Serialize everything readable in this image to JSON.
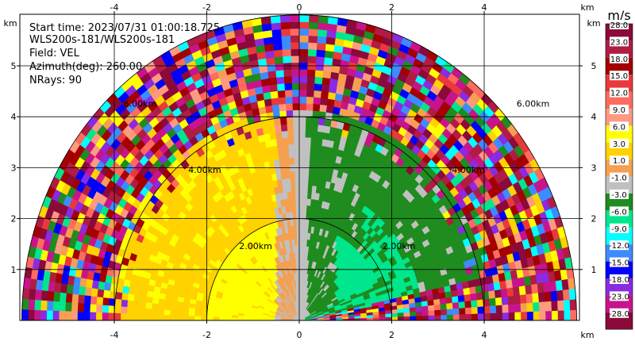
{
  "chart_data": {
    "type": "heatmap",
    "subtype": "radar-rhi-velocity",
    "info_lines": [
      "Start time: 2023/07/31 01:00:18.725",
      "WLS200s-181/WLS200s-181",
      "Field: VEL",
      "Azimuth(deg): 260.00",
      "NRays: 90"
    ],
    "x_unit": "km",
    "y_unit": "km",
    "xlim": [
      -5.9,
      6.25
    ],
    "ylim": [
      0,
      5.9
    ],
    "xticks": [
      -4,
      -2,
      0,
      2,
      4
    ],
    "yticks": [
      1,
      2,
      3,
      4,
      5
    ],
    "range_rings_km": [
      2,
      4,
      6
    ],
    "ring_labels": [
      "2.00km",
      "4.00km",
      "6.00km"
    ],
    "max_range_km": 6.0,
    "nrays": 90,
    "colorbar": {
      "unit": "m/s",
      "tick_labels": [
        "28.0",
        "23.0",
        "18.0",
        "15.0",
        "12.0",
        "9.0",
        "6.0",
        "3.0",
        "1.0",
        "-1.0",
        "-3.0",
        "-6.0",
        "-9.0",
        "-12.0",
        "-15.0",
        "-18.0",
        "-23.0",
        "-28.0"
      ],
      "colors": [
        "#8b0a3a",
        "#b01c44",
        "#a40000",
        "#e9393a",
        "#ff6b5e",
        "#ff9a80",
        "#ffff00",
        "#ffd200",
        "#f5a050",
        "#c0c0c0",
        "#1e8c1e",
        "#00e68c",
        "#00ffff",
        "#3c8cff",
        "#0000ff",
        "#8a2be2",
        "#c8148c",
        "#8b0a3a"
      ]
    },
    "regions_approx": [
      {
        "description": "left near range",
        "range_km": [
          0,
          2.0
        ],
        "velocity_mps": 6.0
      },
      {
        "description": "left mid range",
        "range_km": [
          2.0,
          4.0
        ],
        "velocity_mps": 3.0
      },
      {
        "description": "right near range",
        "range_km": [
          0,
          2.0
        ],
        "velocity_mps": -6.0
      },
      {
        "description": "vertical column",
        "range_km": [
          0,
          4.0
        ],
        "velocity_mps": 0.0
      },
      {
        "description": "outer range",
        "range_km": [
          4.0,
          6.0
        ],
        "velocity_mps": "noise"
      }
    ]
  }
}
